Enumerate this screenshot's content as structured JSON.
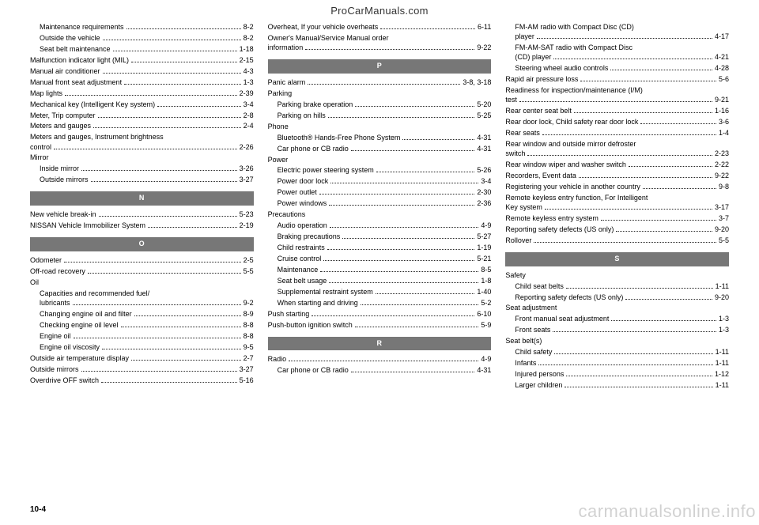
{
  "url_top": "ProCarManuals.com",
  "page_number": "10-4",
  "watermark": "carmanualsonline.info",
  "columns": [
    [
      {
        "label": "Maintenance requirements",
        "page": "8-2",
        "indent": true
      },
      {
        "label": "Outside the vehicle",
        "page": "8-2",
        "indent": true
      },
      {
        "label": "Seat belt maintenance",
        "page": "1-18",
        "indent": true
      },
      {
        "label": "Malfunction indicator light (MIL)",
        "page": "2-15"
      },
      {
        "label": "Manual air conditioner",
        "page": "4-3"
      },
      {
        "label": "Manual front seat adjustment",
        "page": "1-3"
      },
      {
        "label": "Map lights",
        "page": "2-39"
      },
      {
        "label": "Mechanical key (Intelligent Key system)",
        "page": "3-4"
      },
      {
        "label": "Meter, Trip computer",
        "page": "2-8"
      },
      {
        "label": "Meters and gauges",
        "page": "2-4"
      },
      {
        "label": "Meters and gauges, Instrument brightness",
        "cont": true
      },
      {
        "label": "control",
        "page": "2-26"
      },
      {
        "label": "Mirror"
      },
      {
        "label": "Inside mirror",
        "page": "3-26",
        "indent": true
      },
      {
        "label": "Outside mirrors",
        "page": "3-27",
        "indent": true
      },
      {
        "sect": "N"
      },
      {
        "label": "New vehicle break-in",
        "page": "5-23"
      },
      {
        "label": "NISSAN Vehicle Immobilizer System",
        "page": "2-19"
      },
      {
        "sect": "O"
      },
      {
        "label": "Odometer",
        "page": "2-5"
      },
      {
        "label": "Off-road recovery",
        "page": "5-5"
      },
      {
        "label": "Oil"
      },
      {
        "label": "Capacities and recommended fuel/",
        "cont": true,
        "indent": true
      },
      {
        "label": "lubricants",
        "page": "9-2",
        "indent": true
      },
      {
        "label": "Changing engine oil and filter",
        "page": "8-9",
        "indent": true
      },
      {
        "label": "Checking engine oil level",
        "page": "8-8",
        "indent": true
      },
      {
        "label": "Engine oil",
        "page": "8-8",
        "indent": true
      },
      {
        "label": "Engine oil viscosity",
        "page": "9-5",
        "indent": true
      },
      {
        "label": "Outside air temperature display",
        "page": "2-7"
      },
      {
        "label": "Outside mirrors",
        "page": "3-27"
      },
      {
        "label": "Overdrive OFF switch",
        "page": "5-16"
      }
    ],
    [
      {
        "label": "Overheat, If your vehicle overheats",
        "page": "6-11"
      },
      {
        "label": "Owner's Manual/Service Manual order",
        "cont": true
      },
      {
        "label": "information",
        "page": "9-22"
      },
      {
        "sect": "P"
      },
      {
        "label": "Panic alarm",
        "page": "3-8, 3-18"
      },
      {
        "label": "Parking"
      },
      {
        "label": "Parking brake operation",
        "page": "5-20",
        "indent": true
      },
      {
        "label": "Parking on hills",
        "page": "5-25",
        "indent": true
      },
      {
        "label": "Phone"
      },
      {
        "label": "Bluetooth® Hands-Free Phone System",
        "page": "4-31",
        "indent": true
      },
      {
        "label": "Car phone or CB radio",
        "page": "4-31",
        "indent": true
      },
      {
        "label": "Power"
      },
      {
        "label": "Electric power steering system",
        "page": "5-26",
        "indent": true
      },
      {
        "label": "Power door lock",
        "page": "3-4",
        "indent": true
      },
      {
        "label": "Power outlet",
        "page": "2-30",
        "indent": true
      },
      {
        "label": "Power windows",
        "page": "2-36",
        "indent": true
      },
      {
        "label": "Precautions"
      },
      {
        "label": "Audio operation",
        "page": "4-9",
        "indent": true
      },
      {
        "label": "Braking precautions",
        "page": "5-27",
        "indent": true
      },
      {
        "label": "Child restraints",
        "page": "1-19",
        "indent": true
      },
      {
        "label": "Cruise control",
        "page": "5-21",
        "indent": true
      },
      {
        "label": "Maintenance",
        "page": "8-5",
        "indent": true
      },
      {
        "label": "Seat belt usage",
        "page": "1-8",
        "indent": true
      },
      {
        "label": "Supplemental restraint system",
        "page": "1-40",
        "indent": true
      },
      {
        "label": "When starting and driving",
        "page": "5-2",
        "indent": true
      },
      {
        "label": "Push starting",
        "page": "6-10"
      },
      {
        "label": "Push-button ignition switch",
        "page": "5-9"
      },
      {
        "sect": "R"
      },
      {
        "label": "Radio",
        "page": "4-9"
      },
      {
        "label": "Car phone or CB radio",
        "page": "4-31",
        "indent": true
      }
    ],
    [
      {
        "label": "FM-AM radio with Compact Disc (CD)",
        "cont": true,
        "indent": true
      },
      {
        "label": "player",
        "page": "4-17",
        "indent": true
      },
      {
        "label": "FM-AM-SAT radio with Compact Disc",
        "cont": true,
        "indent": true
      },
      {
        "label": "(CD) player",
        "page": "4-21",
        "indent": true
      },
      {
        "label": "Steering wheel audio controls",
        "page": "4-28",
        "indent": true
      },
      {
        "label": "Rapid air pressure loss",
        "page": "5-6"
      },
      {
        "label": "Readiness for inspection/maintenance (I/M)",
        "cont": true
      },
      {
        "label": "test",
        "page": "9-21"
      },
      {
        "label": "Rear center seat belt",
        "page": "1-16"
      },
      {
        "label": "Rear door lock, Child safety rear door lock",
        "page": "3-6"
      },
      {
        "label": "Rear seats",
        "page": "1-4"
      },
      {
        "label": "Rear window and outside mirror defroster",
        "cont": true
      },
      {
        "label": "switch",
        "page": "2-23"
      },
      {
        "label": "Rear window wiper and washer switch",
        "page": "2-22"
      },
      {
        "label": "Recorders, Event data",
        "page": "9-22"
      },
      {
        "label": "Registering your vehicle in another country",
        "page": "9-8"
      },
      {
        "label": "Remote keyless entry function, For Intelligent",
        "cont": true
      },
      {
        "label": "Key system",
        "page": "3-17"
      },
      {
        "label": "Remote keyless entry system",
        "page": "3-7"
      },
      {
        "label": "Reporting safety defects (US only)",
        "page": "9-20"
      },
      {
        "label": "Rollover",
        "page": "5-5"
      },
      {
        "sect": "S"
      },
      {
        "label": "Safety"
      },
      {
        "label": "Child seat belts",
        "page": "1-11",
        "indent": true
      },
      {
        "label": "Reporting safety defects (US only)",
        "page": "9-20",
        "indent": true
      },
      {
        "label": "Seat adjustment"
      },
      {
        "label": "Front manual seat adjustment",
        "page": "1-3",
        "indent": true
      },
      {
        "label": "Front seats",
        "page": "1-3",
        "indent": true
      },
      {
        "label": "Seat belt(s)"
      },
      {
        "label": "Child safety",
        "page": "1-11",
        "indent": true
      },
      {
        "label": "Infants",
        "page": "1-11",
        "indent": true
      },
      {
        "label": "Injured persons",
        "page": "1-12",
        "indent": true
      },
      {
        "label": "Larger children",
        "page": "1-11",
        "indent": true
      }
    ]
  ]
}
